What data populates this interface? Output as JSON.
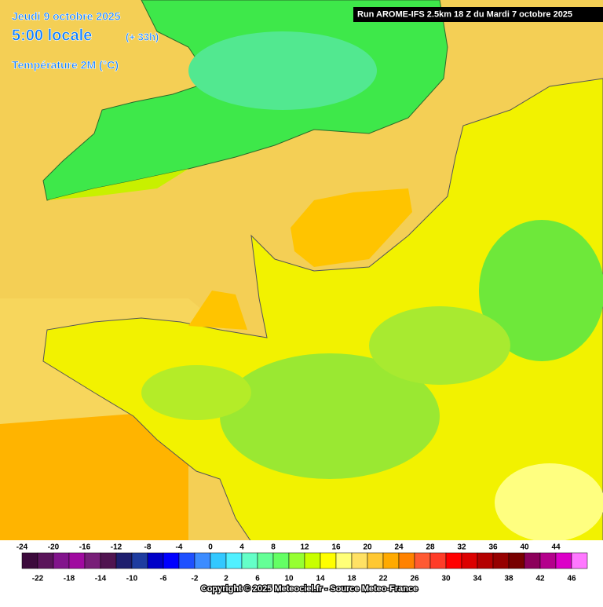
{
  "header": {
    "date": "Jeudi 9 octobre 2025",
    "time": "5:00 locale",
    "lead": "(+ 33h)",
    "parameter": "Température 2M (°C)",
    "run": "Run AROME-IFS 2.5km 18 Z du Mardi 7 octobre 2025"
  },
  "legend": {
    "boxes": [
      {
        "value": -24,
        "color": "#3c0a3c"
      },
      {
        "value": -22,
        "color": "#5a145a"
      },
      {
        "value": -20,
        "color": "#82148c"
      },
      {
        "value": -18,
        "color": "#a00aa0"
      },
      {
        "value": -16,
        "color": "#781e78"
      },
      {
        "value": -14,
        "color": "#501450"
      },
      {
        "value": -12,
        "color": "#1e1e6e"
      },
      {
        "value": -10,
        "color": "#1e3ca0"
      },
      {
        "value": -8,
        "color": "#0000c8"
      },
      {
        "value": -6,
        "color": "#0000ff"
      },
      {
        "value": -4,
        "color": "#1e50ff"
      },
      {
        "value": -2,
        "color": "#3c8cff"
      },
      {
        "value": 0,
        "color": "#32c8ff"
      },
      {
        "value": 2,
        "color": "#50f0ff"
      },
      {
        "value": 4,
        "color": "#64ffc8"
      },
      {
        "value": 6,
        "color": "#64ff96"
      },
      {
        "value": 8,
        "color": "#64ff64"
      },
      {
        "value": 10,
        "color": "#96ff32"
      },
      {
        "value": 12,
        "color": "#c8ff00"
      },
      {
        "value": 14,
        "color": "#ffff00"
      },
      {
        "value": 16,
        "color": "#ffff78"
      },
      {
        "value": 18,
        "color": "#ffe164"
      },
      {
        "value": 20,
        "color": "#ffc832"
      },
      {
        "value": 22,
        "color": "#ffaa00"
      },
      {
        "value": 24,
        "color": "#ff8200"
      },
      {
        "value": 26,
        "color": "#ff5a32"
      },
      {
        "value": 28,
        "color": "#ff3c28"
      },
      {
        "value": 30,
        "color": "#ff0000"
      },
      {
        "value": 32,
        "color": "#dc0000"
      },
      {
        "value": 34,
        "color": "#b40000"
      },
      {
        "value": 36,
        "color": "#960000"
      },
      {
        "value": 38,
        "color": "#780000"
      },
      {
        "value": 40,
        "color": "#8c005a"
      },
      {
        "value": 42,
        "color": "#b4008c"
      },
      {
        "value": 44,
        "color": "#dc00c8"
      },
      {
        "value": 46,
        "color": "#ff78ff"
      }
    ]
  },
  "footer": {
    "copyright": "Copyright © 2025 Meteociel.fr - Source Meteo-France"
  }
}
